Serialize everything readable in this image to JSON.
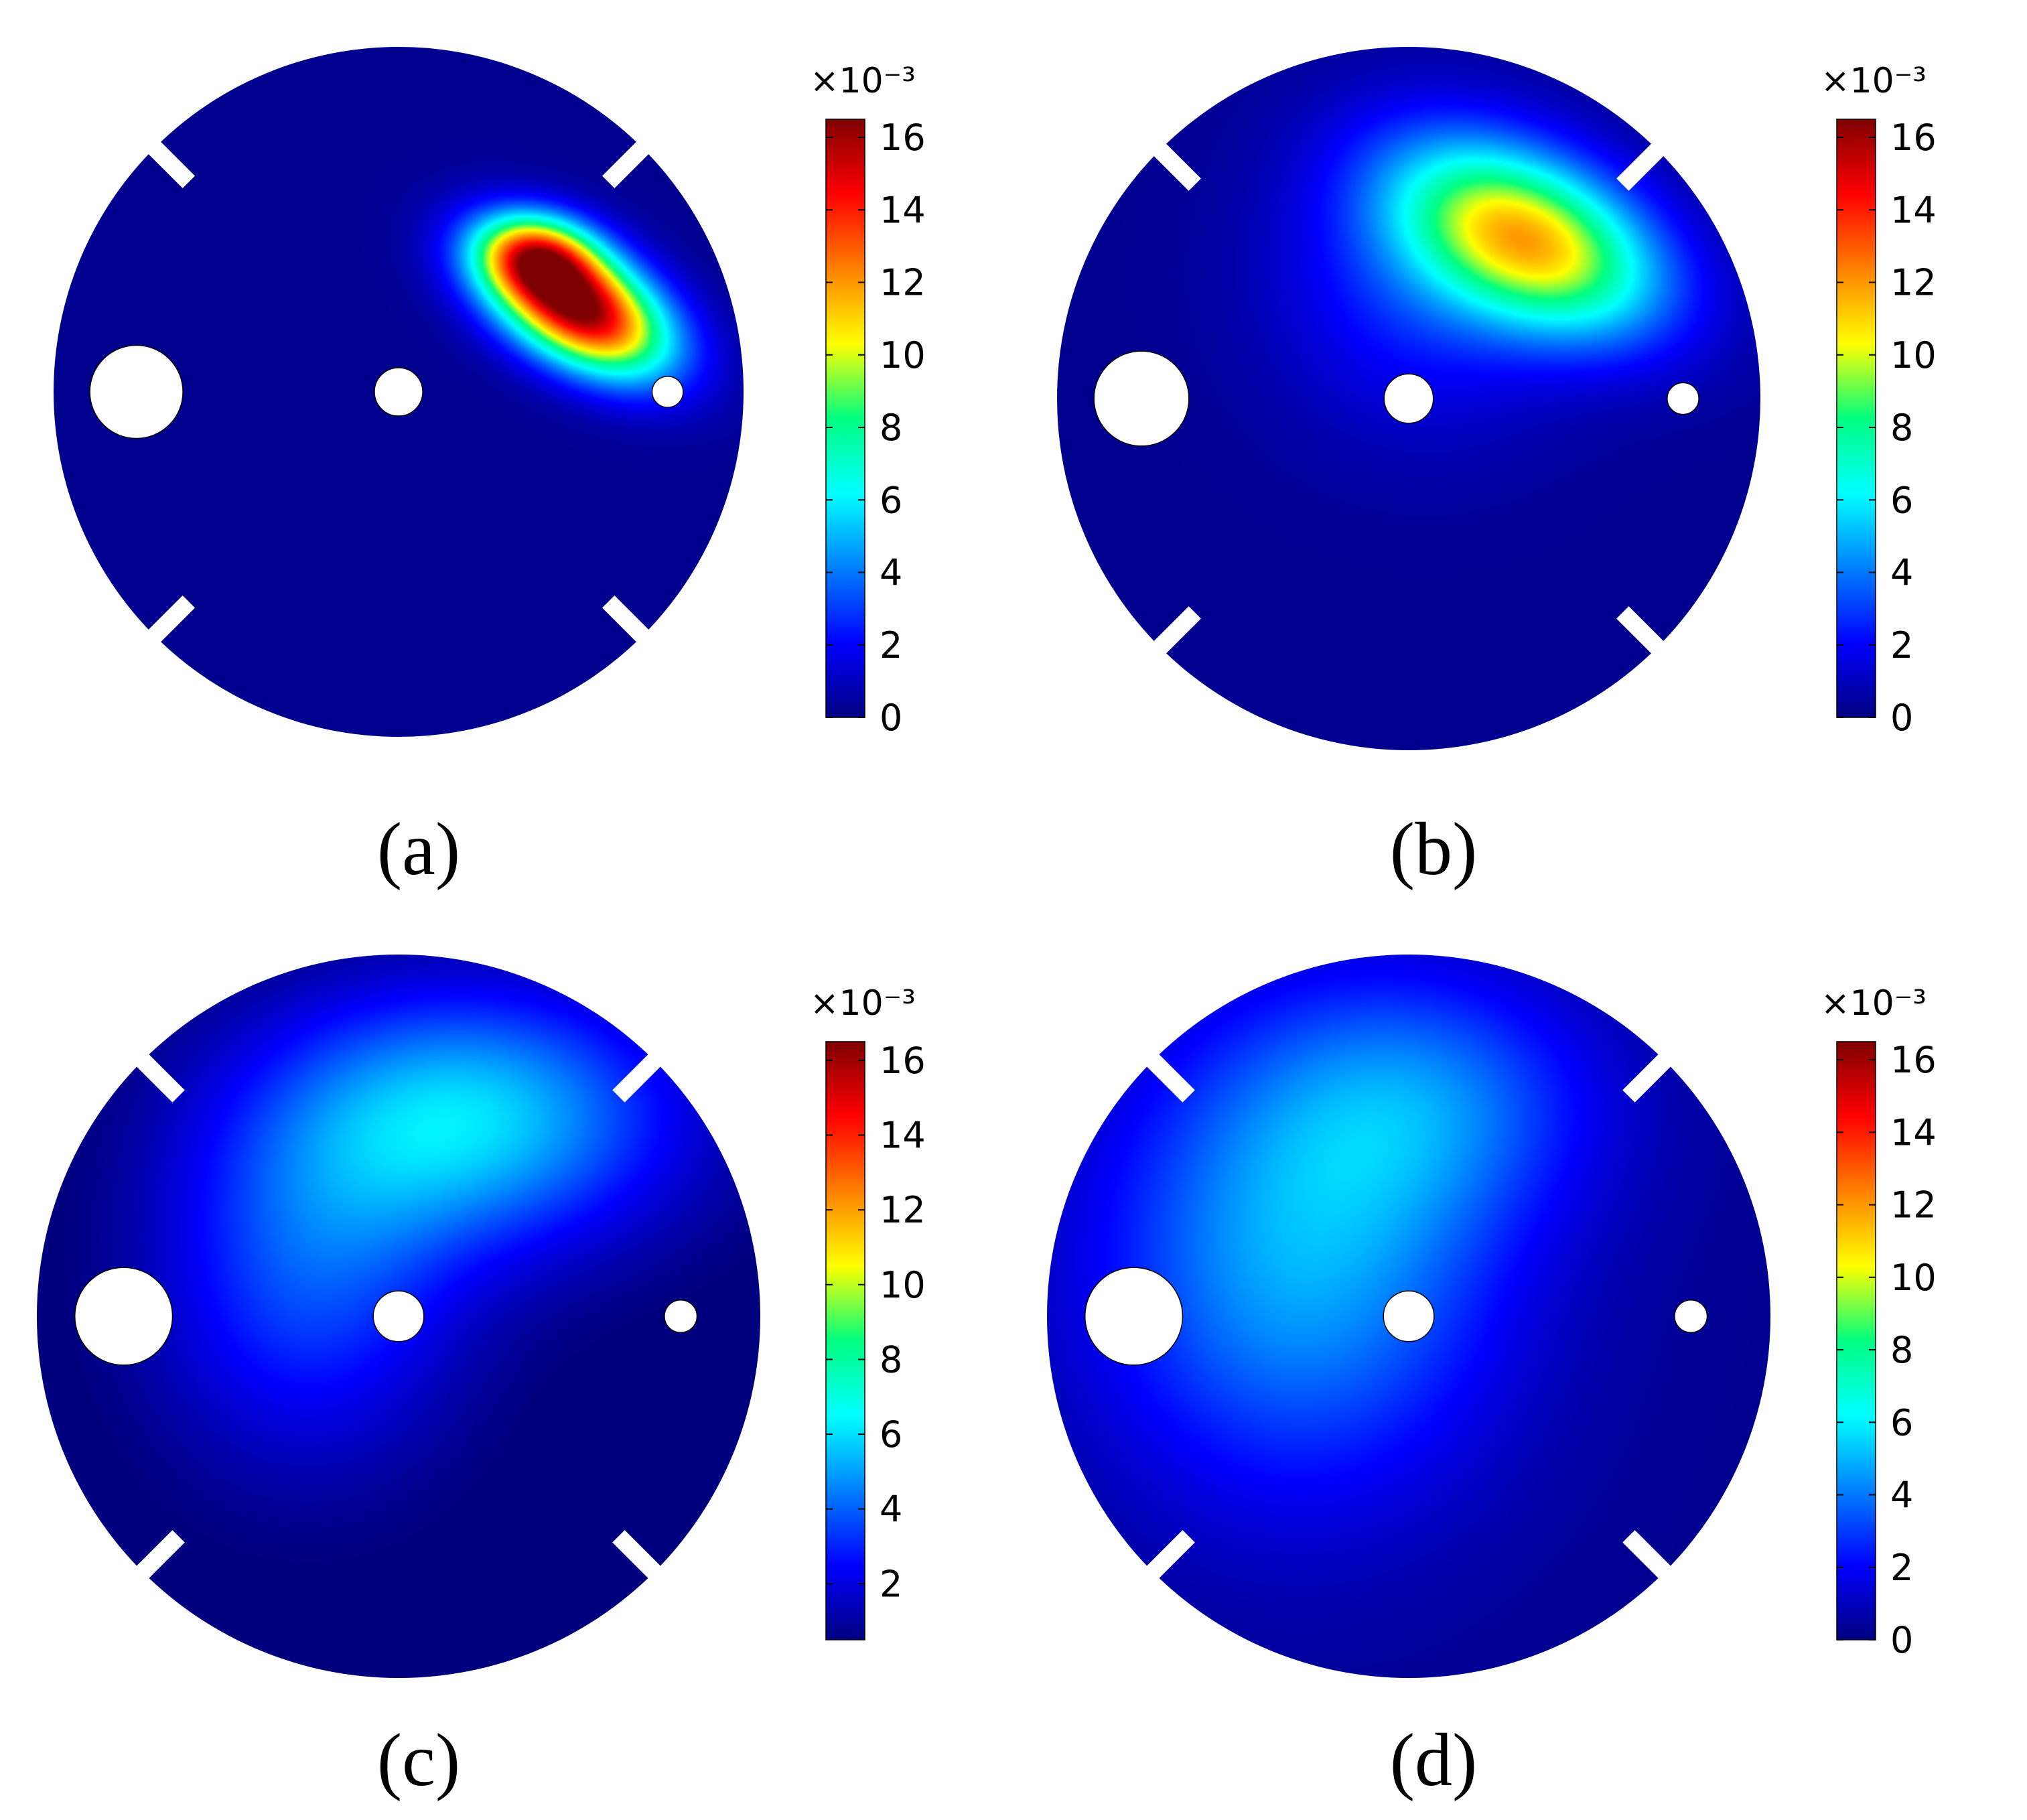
{
  "figure": {
    "panels": [
      {
        "label": "(a)",
        "name": "a"
      },
      {
        "label": "(b)",
        "name": "b"
      },
      {
        "label": "(c)",
        "name": "c"
      },
      {
        "label": "(d)",
        "name": "d"
      }
    ]
  },
  "chart_data": [
    {
      "type": "heatmap",
      "panel": "(a)",
      "colormap": "rainbow (dark blue → cyan → green → yellow → red → dark red)",
      "colorbar": {
        "min": 0,
        "max": 16.5,
        "ticks": [
          "0",
          "2",
          "4",
          "6",
          "8",
          "10",
          "12",
          "14",
          "16"
        ],
        "multiplier": "×10⁻³"
      },
      "field_max": 16.5,
      "hotspot_location": "upper-right, next to the small right hole",
      "hotspots": [
        {
          "cx": 0.52,
          "cy": -0.25,
          "sx": 0.2,
          "sy": 0.11,
          "rot": 30,
          "peak": 16.5
        },
        {
          "cx": 0.4,
          "cy": -0.4,
          "sx": 0.12,
          "sy": 0.08,
          "rot": 10,
          "peak": 8
        }
      ]
    },
    {
      "type": "heatmap",
      "panel": "(b)",
      "colormap": "rainbow (dark blue → cyan → green → yellow → red → dark red)",
      "colorbar": {
        "min": 0,
        "max": 16.5,
        "ticks": [
          "0",
          "2",
          "4",
          "6",
          "8",
          "10",
          "12",
          "14",
          "16"
        ],
        "multiplier": "×10⁻³"
      },
      "field_max": 10.5,
      "hotspot_location": "upper-right quadrant",
      "hotspots": [
        {
          "cx": 0.35,
          "cy": -0.45,
          "sx": 0.28,
          "sy": 0.16,
          "rot": 25,
          "peak": 10.2
        },
        {
          "cx": 0.05,
          "cy": -0.35,
          "sx": 0.3,
          "sy": 0.3,
          "rot": 0,
          "peak": 2.5
        }
      ]
    },
    {
      "type": "heatmap",
      "panel": "(c)",
      "colormap": "rainbow (dark blue → cyan → green → yellow → red → dark red)",
      "colorbar": {
        "min": 0.5,
        "max": 16.5,
        "ticks": [
          "2",
          "4",
          "6",
          "8",
          "10",
          "12",
          "14",
          "16"
        ],
        "multiplier": "×10⁻³"
      },
      "field_max": 6.5,
      "hotspot_location": "upper-centre spreading toward the central hole",
      "hotspots": [
        {
          "cx": 0.2,
          "cy": -0.55,
          "sx": 0.4,
          "sy": 0.25,
          "rot": 0,
          "peak": 5.5
        },
        {
          "cx": -0.25,
          "cy": -0.1,
          "sx": 0.3,
          "sy": 0.35,
          "rot": 0,
          "peak": 3.2
        }
      ]
    },
    {
      "type": "heatmap",
      "panel": "(d)",
      "colormap": "rainbow (dark blue → cyan → green → yellow → red → dark red)",
      "colorbar": {
        "min": 0,
        "max": 16.5,
        "ticks": [
          "0",
          "2",
          "4",
          "6",
          "8",
          "10",
          "12",
          "14",
          "16"
        ],
        "multiplier": "×10⁻³"
      },
      "field_max": 5,
      "hotspot_location": "left of centre around the central hole",
      "hotspots": [
        {
          "cx": -0.3,
          "cy": -0.15,
          "sx": 0.4,
          "sy": 0.45,
          "rot": 0,
          "peak": 4.5
        },
        {
          "cx": 0.05,
          "cy": -0.6,
          "sx": 0.35,
          "sy": 0.25,
          "rot": 0,
          "peak": 2.8
        }
      ]
    }
  ],
  "colors": {
    "dark_blue": "#00007F",
    "blue": "#0000FF",
    "cyan": "#00FFFF",
    "green": "#00FF80",
    "yellow": "#FFFF00",
    "orange": "#FF8000",
    "red": "#FF0000",
    "dark_red": "#7F0000"
  }
}
